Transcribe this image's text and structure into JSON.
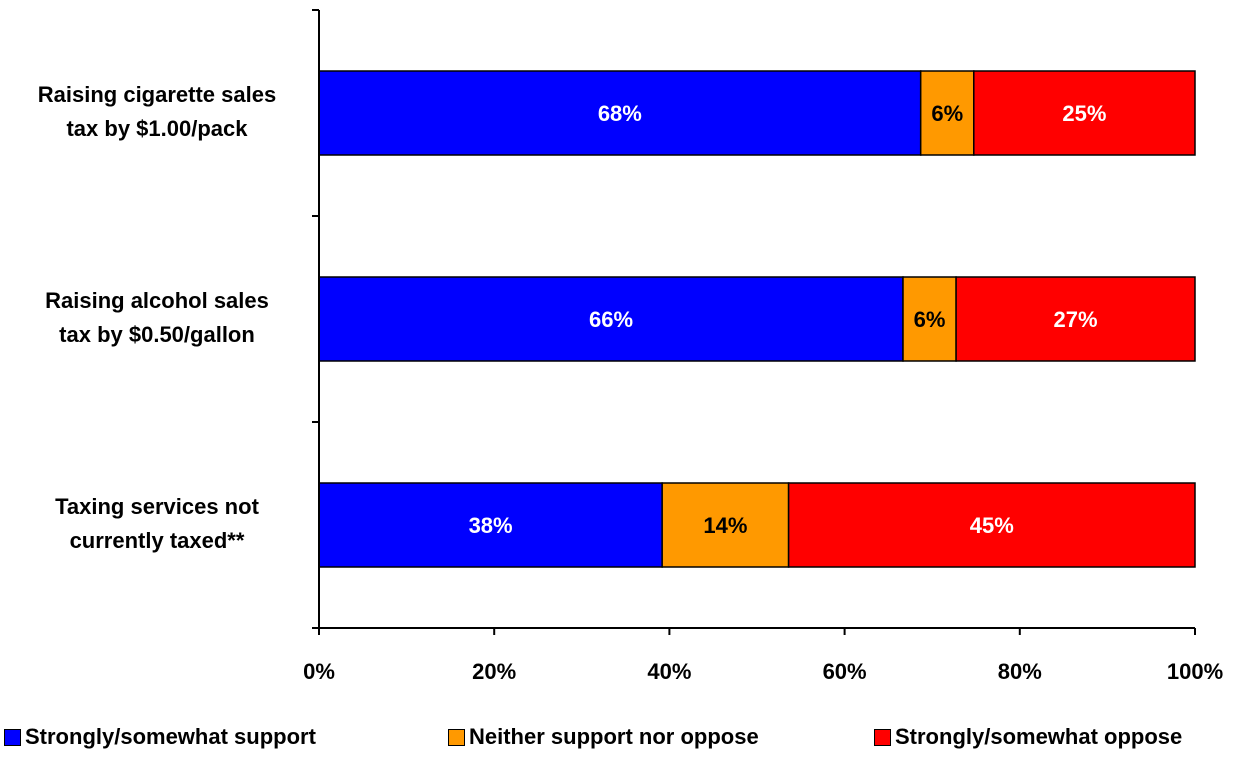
{
  "chart_data": {
    "type": "bar",
    "orientation": "horizontal",
    "stacked": true,
    "categories": [
      [
        "Raising cigarette sales",
        "tax by $1.00/pack"
      ],
      [
        "Raising alcohol sales",
        "tax by $0.50/gallon"
      ],
      [
        "Taxing services not",
        "currently taxed**"
      ]
    ],
    "series": [
      {
        "name": "Strongly/somewhat support",
        "color": "#0000ff",
        "label_color": "#ffffff",
        "values": [
          68,
          66,
          38
        ],
        "labels": [
          "68%",
          "66%",
          "38%"
        ]
      },
      {
        "name": "Neither support nor oppose",
        "color": "#ff9900",
        "label_color": "#000000",
        "values": [
          6,
          6,
          14
        ],
        "labels": [
          "6%",
          "6%",
          "14%"
        ]
      },
      {
        "name": "Strongly/somewhat oppose",
        "color": "#ff0000",
        "label_color": "#ffffff",
        "values": [
          25,
          27,
          45
        ],
        "labels": [
          "25%",
          "27%",
          "45%"
        ]
      }
    ],
    "xlim": [
      0,
      100
    ],
    "xticks": [
      0,
      20,
      40,
      60,
      80,
      100
    ],
    "xtick_labels": [
      "0%",
      "20%",
      "40%",
      "60%",
      "80%",
      "100%"
    ],
    "grid": false,
    "legend_position": "bottom"
  }
}
